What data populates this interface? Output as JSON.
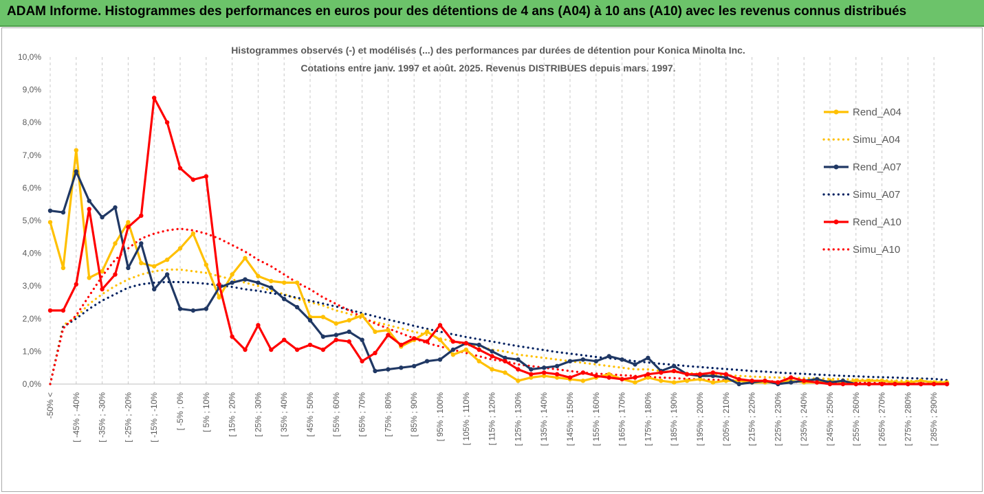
{
  "header": {
    "title": "ADAM Informe. Histogrammes des performances en euros pour des détentions de 4 ans (A04) à 10 ans (A10) avec les revenus connus distribués"
  },
  "chart_data": {
    "type": "line",
    "title_line1": "Histogrammes observés (-) et modélisés (...) des performances par durées de détention pour Konica Minolta Inc.",
    "title_line2": "Cotations entre janv. 1997 et août. 2025. Revenus DISTRIBUES depuis mars. 1997.",
    "ylim": [
      0,
      10
    ],
    "yticks": [
      "0,0%",
      "1,0%",
      "2,0%",
      "3,0%",
      "4,0%",
      "5,0%",
      "6,0%",
      "7,0%",
      "8,0%",
      "9,0%",
      "10,0%"
    ],
    "x_tick_labels": [
      "-50% <",
      "[ -45% ; -40%",
      "[ -35% ; -30%",
      "[ -25% ; -20%",
      "[ -15% ; -10%",
      "[ -5% ; 0%",
      "[ 5% ; 10%",
      "[ 15% ; 20%",
      "[ 25% ; 30%",
      "[ 35% ; 40%",
      "[ 45% ; 50%",
      "[ 55% ; 60%",
      "[ 65% ; 70%",
      "[ 75% ; 80%",
      "[ 85% ; 90%",
      "[ 95% ; 100%",
      "[ 105% ; 110%",
      "[ 115% ; 120%",
      "[ 125% ; 130%",
      "[ 135% ; 140%",
      "[ 145% ; 150%",
      "[ 155% ; 160%",
      "[ 165% ; 170%",
      "[ 175% ; 180%",
      "[ 185% ; 190%",
      "[ 195% ; 200%",
      "[ 205% ; 210%",
      "[ 215% ; 220%",
      "[ 225% ; 230%",
      "[ 235% ; 240%",
      "[ 245% ; 250%",
      "[ 255% ; 260%",
      "[ 265% ; 270%",
      "[ 275% ; 280%",
      "[ 285% ; 290%"
    ],
    "legend_position": "right",
    "grid": "vertical dashed",
    "series": [
      {
        "name": "Rend_A04",
        "style": "solid",
        "color": "#ffc000",
        "values": [
          4.95,
          3.55,
          7.15,
          3.25,
          3.45,
          4.3,
          4.95,
          3.7,
          3.6,
          3.8,
          4.15,
          4.6,
          3.65,
          2.65,
          3.35,
          3.85,
          3.3,
          3.15,
          3.1,
          3.1,
          2.05,
          2.05,
          1.85,
          1.95,
          2.1,
          1.6,
          1.65,
          1.15,
          1.35,
          1.6,
          1.35,
          0.9,
          1.05,
          0.7,
          0.45,
          0.35,
          0.1,
          0.2,
          0.25,
          0.2,
          0.15,
          0.1,
          0.2,
          0.3,
          0.15,
          0.05,
          0.2,
          0.1,
          0.05,
          0.1,
          0.15,
          0.05,
          0.1,
          0.1,
          0.05,
          0.05,
          0.05,
          0.1,
          0.05,
          0.05,
          0.1,
          0.05,
          0.1,
          0.1,
          0.1,
          0.05,
          0.05,
          0.1,
          0.05,
          0.05
        ]
      },
      {
        "name": "Simu_A04",
        "style": "dotted",
        "color": "#ffc000",
        "values": [
          0.0,
          1.8,
          2.05,
          2.45,
          2.75,
          3.0,
          3.2,
          3.35,
          3.45,
          3.5,
          3.5,
          3.45,
          3.4,
          3.3,
          3.2,
          3.1,
          3.0,
          2.85,
          2.75,
          2.6,
          2.5,
          2.4,
          2.25,
          2.15,
          2.0,
          1.9,
          1.8,
          1.7,
          1.6,
          1.5,
          1.4,
          1.3,
          1.2,
          1.15,
          1.05,
          1.0,
          0.9,
          0.85,
          0.8,
          0.75,
          0.7,
          0.65,
          0.6,
          0.55,
          0.5,
          0.45,
          0.45,
          0.4,
          0.37,
          0.34,
          0.31,
          0.29,
          0.27,
          0.25,
          0.23,
          0.21,
          0.2,
          0.19,
          0.18,
          0.17,
          0.16,
          0.15,
          0.14,
          0.13,
          0.12,
          0.11,
          0.1,
          0.09,
          0.08,
          0.08
        ]
      },
      {
        "name": "Rend_A07",
        "style": "solid",
        "color": "#203864",
        "values": [
          5.3,
          5.25,
          6.5,
          5.6,
          5.1,
          5.4,
          3.55,
          4.3,
          2.9,
          3.35,
          2.3,
          2.25,
          2.3,
          2.95,
          3.1,
          3.2,
          3.1,
          2.95,
          2.6,
          2.35,
          1.95,
          1.45,
          1.5,
          1.6,
          1.35,
          0.4,
          0.45,
          0.5,
          0.55,
          0.7,
          0.75,
          1.05,
          1.25,
          1.2,
          1.0,
          0.8,
          0.75,
          0.45,
          0.5,
          0.55,
          0.7,
          0.75,
          0.7,
          0.85,
          0.75,
          0.6,
          0.8,
          0.4,
          0.55,
          0.3,
          0.25,
          0.25,
          0.2,
          0.0,
          0.05,
          0.1,
          0.0,
          0.05,
          0.1,
          0.15,
          0.05,
          0.1,
          0.0,
          0.0,
          0.0,
          0.0,
          0.0,
          0.0,
          0.0,
          0.0
        ]
      },
      {
        "name": "Simu_A07",
        "style": "dotted",
        "color": "#002060",
        "values": [
          0.0,
          1.75,
          2.0,
          2.3,
          2.55,
          2.75,
          2.95,
          3.05,
          3.1,
          3.12,
          3.12,
          3.1,
          3.07,
          3.02,
          2.97,
          2.9,
          2.85,
          2.78,
          2.72,
          2.64,
          2.55,
          2.46,
          2.37,
          2.27,
          2.17,
          2.07,
          1.97,
          1.88,
          1.78,
          1.69,
          1.6,
          1.52,
          1.44,
          1.37,
          1.3,
          1.23,
          1.16,
          1.1,
          1.04,
          0.98,
          0.93,
          0.88,
          0.83,
          0.79,
          0.75,
          0.7,
          0.66,
          0.62,
          0.59,
          0.55,
          0.52,
          0.49,
          0.46,
          0.43,
          0.4,
          0.38,
          0.35,
          0.33,
          0.31,
          0.29,
          0.27,
          0.25,
          0.24,
          0.22,
          0.21,
          0.2,
          0.18,
          0.17,
          0.16,
          0.12
        ]
      },
      {
        "name": "Rend_A10",
        "style": "solid",
        "color": "#ff0000",
        "values": [
          2.25,
          2.25,
          3.05,
          5.35,
          2.9,
          3.35,
          4.8,
          5.15,
          8.75,
          8.0,
          6.6,
          6.25,
          6.35,
          3.05,
          1.45,
          1.05,
          1.8,
          1.05,
          1.35,
          1.05,
          1.2,
          1.05,
          1.35,
          1.3,
          0.7,
          0.95,
          1.5,
          1.2,
          1.4,
          1.3,
          1.8,
          1.3,
          1.25,
          1.05,
          0.85,
          0.7,
          0.45,
          0.3,
          0.35,
          0.3,
          0.2,
          0.35,
          0.25,
          0.2,
          0.15,
          0.2,
          0.3,
          0.35,
          0.4,
          0.3,
          0.3,
          0.35,
          0.3,
          0.15,
          0.1,
          0.1,
          0.05,
          0.2,
          0.1,
          0.05,
          0.0,
          0.0,
          0.0,
          0.0,
          0.0,
          0.0,
          0.0,
          0.0,
          0.0,
          0.0
        ]
      },
      {
        "name": "Simu_A10",
        "style": "dotted",
        "color": "#ff0000",
        "values": [
          0.0,
          1.7,
          2.1,
          2.7,
          3.3,
          3.8,
          4.15,
          4.45,
          4.6,
          4.7,
          4.75,
          4.7,
          4.6,
          4.45,
          4.25,
          4.05,
          3.8,
          3.6,
          3.35,
          3.1,
          2.9,
          2.65,
          2.45,
          2.25,
          2.05,
          1.85,
          1.7,
          1.55,
          1.4,
          1.25,
          1.15,
          1.05,
          0.95,
          0.85,
          0.75,
          0.7,
          0.6,
          0.55,
          0.5,
          0.45,
          0.4,
          0.35,
          0.32,
          0.3,
          0.27,
          0.25,
          0.22,
          0.2,
          0.18,
          0.16,
          0.14,
          0.13,
          0.12,
          0.11,
          0.1,
          0.09,
          0.08,
          0.07,
          0.06,
          0.05,
          0.05,
          0.05,
          0.04,
          0.04,
          0.03,
          0.03,
          0.03,
          0.02,
          0.02,
          0.02
        ]
      }
    ]
  }
}
